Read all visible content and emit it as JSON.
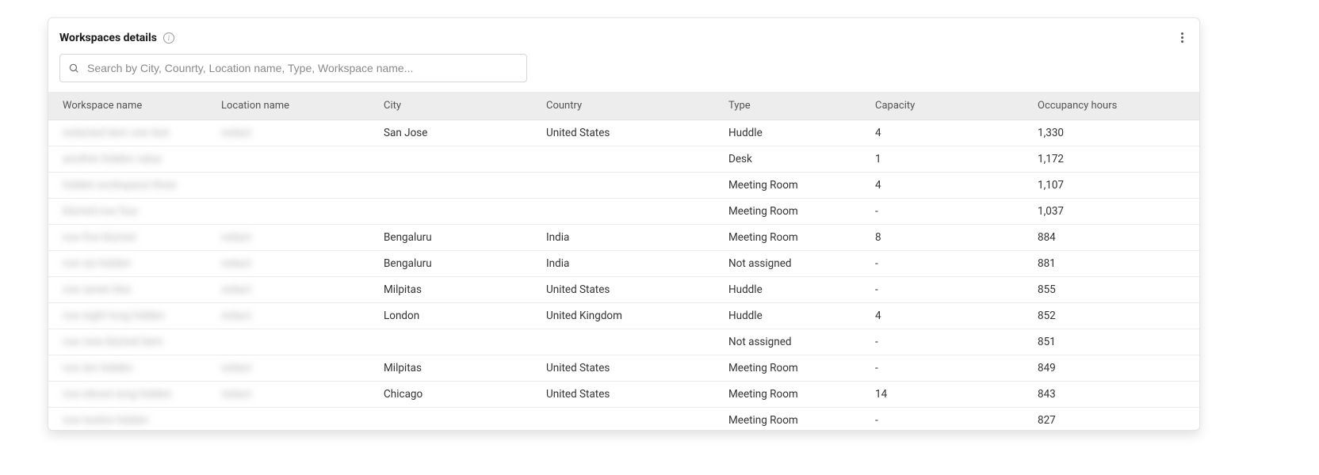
{
  "card": {
    "title": "Workspaces details"
  },
  "search": {
    "placeholder": "Search by City, Counrty, Location name, Type, Workspace name..."
  },
  "table": {
    "columns": [
      "Workspace name",
      "Location name",
      "City",
      "Country",
      "Type",
      "Capacity",
      "Occupancy hours"
    ],
    "rows": [
      {
        "workspace": "redacted item one text",
        "location": "redact",
        "city": "San Jose",
        "country": "United States",
        "type": "Huddle",
        "capacity": "4",
        "occupancy": "1,330"
      },
      {
        "workspace": "another hidden value",
        "location": "",
        "city": "",
        "country": "",
        "type": "Desk",
        "capacity": "1",
        "occupancy": "1,172"
      },
      {
        "workspace": "hidden workspace three",
        "location": "",
        "city": "",
        "country": "",
        "type": "Meeting Room",
        "capacity": "4",
        "occupancy": "1,107"
      },
      {
        "workspace": "blurred row four",
        "location": "",
        "city": "",
        "country": "",
        "type": "Meeting Room",
        "capacity": "-",
        "occupancy": "1,037"
      },
      {
        "workspace": "row five blurred",
        "location": "redact",
        "city": "Bengaluru",
        "country": "India",
        "type": "Meeting Room",
        "capacity": "8",
        "occupancy": "884"
      },
      {
        "workspace": "row six hidden",
        "location": "redact",
        "city": "Bengaluru",
        "country": "India",
        "type": "Not assigned",
        "capacity": "-",
        "occupancy": "881"
      },
      {
        "workspace": "row seven blur",
        "location": "redact",
        "city": "Milpitas",
        "country": "United States",
        "type": "Huddle",
        "capacity": "-",
        "occupancy": "855"
      },
      {
        "workspace": "row eight long hidden",
        "location": "redact",
        "city": "London",
        "country": "United Kingdom",
        "type": "Huddle",
        "capacity": "4",
        "occupancy": "852"
      },
      {
        "workspace": "row nine blurred item",
        "location": "",
        "city": "",
        "country": "",
        "type": "Not assigned",
        "capacity": "-",
        "occupancy": "851"
      },
      {
        "workspace": "row ten hidden",
        "location": "redact",
        "city": "Milpitas",
        "country": "United States",
        "type": "Meeting Room",
        "capacity": "-",
        "occupancy": "849"
      },
      {
        "workspace": "row eleven long hidden",
        "location": "redact",
        "city": "Chicago",
        "country": "United States",
        "type": "Meeting Room",
        "capacity": "14",
        "occupancy": "843"
      },
      {
        "workspace": "row twelve hidden",
        "location": "",
        "city": "",
        "country": "",
        "type": "Meeting Room",
        "capacity": "-",
        "occupancy": "827"
      }
    ]
  },
  "colors": {
    "card_border": "#e5e5e5",
    "header_bg": "#ededed",
    "text_primary": "#333333",
    "text_muted": "#545454",
    "divider": "#ececec"
  }
}
